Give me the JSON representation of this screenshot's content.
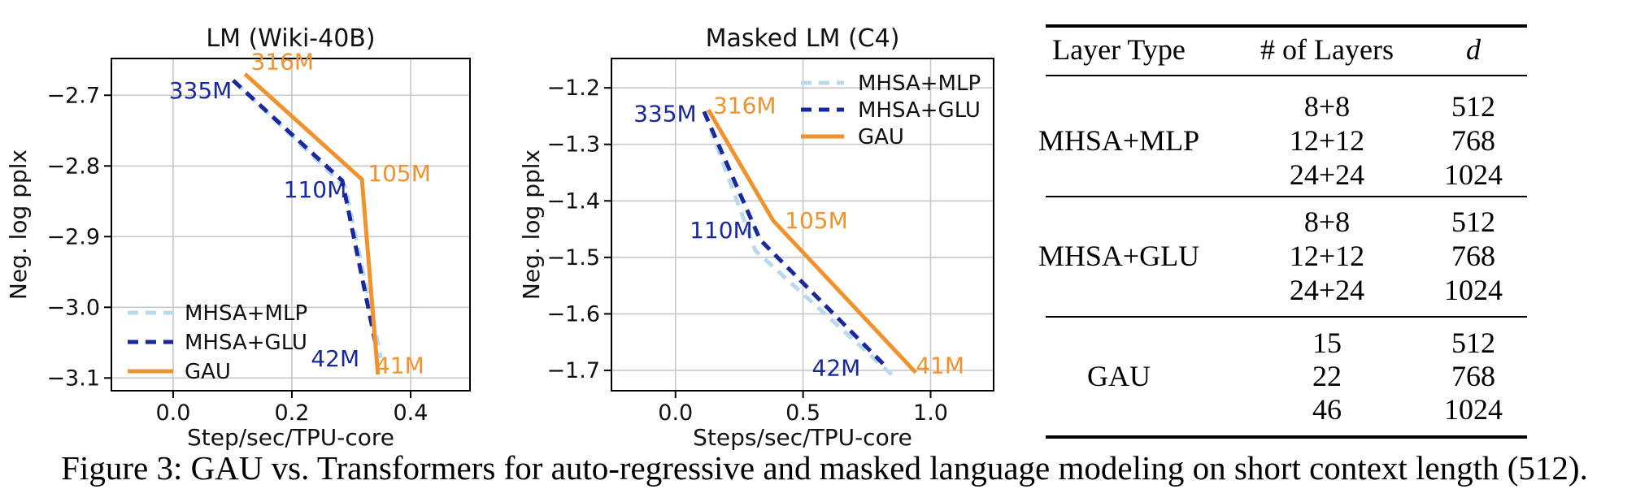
{
  "figure_caption": "Figure 3: GAU vs. Transformers for auto-regressive and masked language modeling on short context length (512).",
  "colors": {
    "mhsa_mlp": "#b9d9ec",
    "mhsa_glu": "#19289d",
    "gau": "#f0932e",
    "grid": "#c8c8c8",
    "axis": "#000000"
  },
  "chart_data": [
    {
      "type": "line",
      "title": "LM (Wiki-40B)",
      "xlabel": "Step/sec/TPU-core",
      "ylabel": "Neg. log pplx",
      "xlim": [
        -0.104,
        0.5
      ],
      "ylim": [
        -3.118,
        -2.648
      ],
      "grid": true,
      "legend_position": "lower left",
      "xticks": [
        0.0,
        0.2,
        0.4
      ],
      "xtick_labels": [
        "0.0",
        "0.2",
        "0.4"
      ],
      "yticks": [
        -2.7,
        -2.8,
        -2.9,
        -3.0,
        -3.1
      ],
      "ytick_labels": [
        "−2.7",
        "−2.8",
        "−2.9",
        "−3.0",
        "−3.1"
      ],
      "series": [
        {
          "name": "MHSA+MLP",
          "style": "dashed",
          "color": "#b9d9ec",
          "points": [
            [
              0.104,
              -2.681
            ],
            [
              0.29,
              -2.83
            ],
            [
              0.35,
              -3.072
            ]
          ]
        },
        {
          "name": "MHSA+GLU",
          "style": "dashed",
          "color": "#19289d",
          "points": [
            [
              0.101,
              -2.679
            ],
            [
              0.285,
              -2.821
            ],
            [
              0.343,
              -3.06
            ]
          ]
        },
        {
          "name": "GAU",
          "style": "solid",
          "color": "#f0932e",
          "points": [
            [
              0.121,
              -2.67
            ],
            [
              0.318,
              -2.819
            ],
            [
              0.345,
              -3.095
            ]
          ]
        }
      ],
      "annotations": [
        {
          "text": "335M",
          "x": 0.046,
          "y": -2.693,
          "color": "#19289d"
        },
        {
          "text": "316M",
          "x": 0.184,
          "y": -2.652,
          "color": "#f0932e"
        },
        {
          "text": "110M",
          "x": 0.239,
          "y": -2.833,
          "color": "#19289d"
        },
        {
          "text": "105M",
          "x": 0.381,
          "y": -2.81,
          "color": "#f0932e"
        },
        {
          "text": "42M",
          "x": 0.273,
          "y": -3.072,
          "color": "#19289d"
        },
        {
          "text": "41M",
          "x": 0.382,
          "y": -3.082,
          "color": "#f0932e"
        }
      ]
    },
    {
      "type": "line",
      "title": "Masked LM (C4)",
      "xlabel": "Steps/sec/TPU-core",
      "ylabel": "Neg. log pplx",
      "xlim": [
        -0.251,
        1.247
      ],
      "ylim": [
        -1.736,
        -1.148
      ],
      "grid": true,
      "legend_position": "upper right",
      "xticks": [
        0.0,
        0.5,
        1.0
      ],
      "xtick_labels": [
        "0.0",
        "0.5",
        "1.0"
      ],
      "yticks": [
        -1.2,
        -1.3,
        -1.4,
        -1.5,
        -1.6,
        -1.7
      ],
      "ytick_labels": [
        "−1.2",
        "−1.3",
        "−1.4",
        "−1.5",
        "−1.6",
        "−1.7"
      ],
      "series": [
        {
          "name": "MHSA+MLP",
          "style": "dashed",
          "color": "#b9d9ec",
          "points": [
            [
              0.112,
              -1.242
            ],
            [
              0.313,
              -1.488
            ],
            [
              0.851,
              -1.709
            ]
          ]
        },
        {
          "name": "MHSA+GLU",
          "style": "dashed",
          "color": "#19289d",
          "points": [
            [
              0.112,
              -1.242
            ],
            [
              0.332,
              -1.469
            ],
            [
              0.824,
              -1.693
            ]
          ]
        },
        {
          "name": "GAU",
          "style": "solid",
          "color": "#f0932e",
          "points": [
            [
              0.129,
              -1.239
            ],
            [
              0.383,
              -1.435
            ],
            [
              0.942,
              -1.704
            ]
          ]
        }
      ],
      "annotations": [
        {
          "text": "335M",
          "x": -0.041,
          "y": -1.245,
          "color": "#19289d"
        },
        {
          "text": "316M",
          "x": 0.271,
          "y": -1.231,
          "color": "#f0932e"
        },
        {
          "text": "110M",
          "x": 0.179,
          "y": -1.451,
          "color": "#19289d"
        },
        {
          "text": "105M",
          "x": 0.552,
          "y": -1.434,
          "color": "#f0932e"
        },
        {
          "text": "42M",
          "x": 0.63,
          "y": -1.695,
          "color": "#19289d"
        },
        {
          "text": "41M",
          "x": 1.037,
          "y": -1.691,
          "color": "#f0932e"
        }
      ]
    }
  ],
  "table": {
    "headers": [
      "Layer Type",
      "# of Layers",
      "d"
    ],
    "groups": [
      {
        "layer_type": "MHSA+MLP",
        "rows": [
          {
            "layers": "8+8",
            "d": "512"
          },
          {
            "layers": "12+12",
            "d": "768"
          },
          {
            "layers": "24+24",
            "d": "1024"
          }
        ]
      },
      {
        "layer_type": "MHSA+GLU",
        "rows": [
          {
            "layers": "8+8",
            "d": "512"
          },
          {
            "layers": "12+12",
            "d": "768"
          },
          {
            "layers": "24+24",
            "d": "1024"
          }
        ]
      },
      {
        "layer_type": "GAU",
        "rows": [
          {
            "layers": "15",
            "d": "512"
          },
          {
            "layers": "22",
            "d": "768"
          },
          {
            "layers": "46",
            "d": "1024"
          }
        ]
      }
    ]
  }
}
